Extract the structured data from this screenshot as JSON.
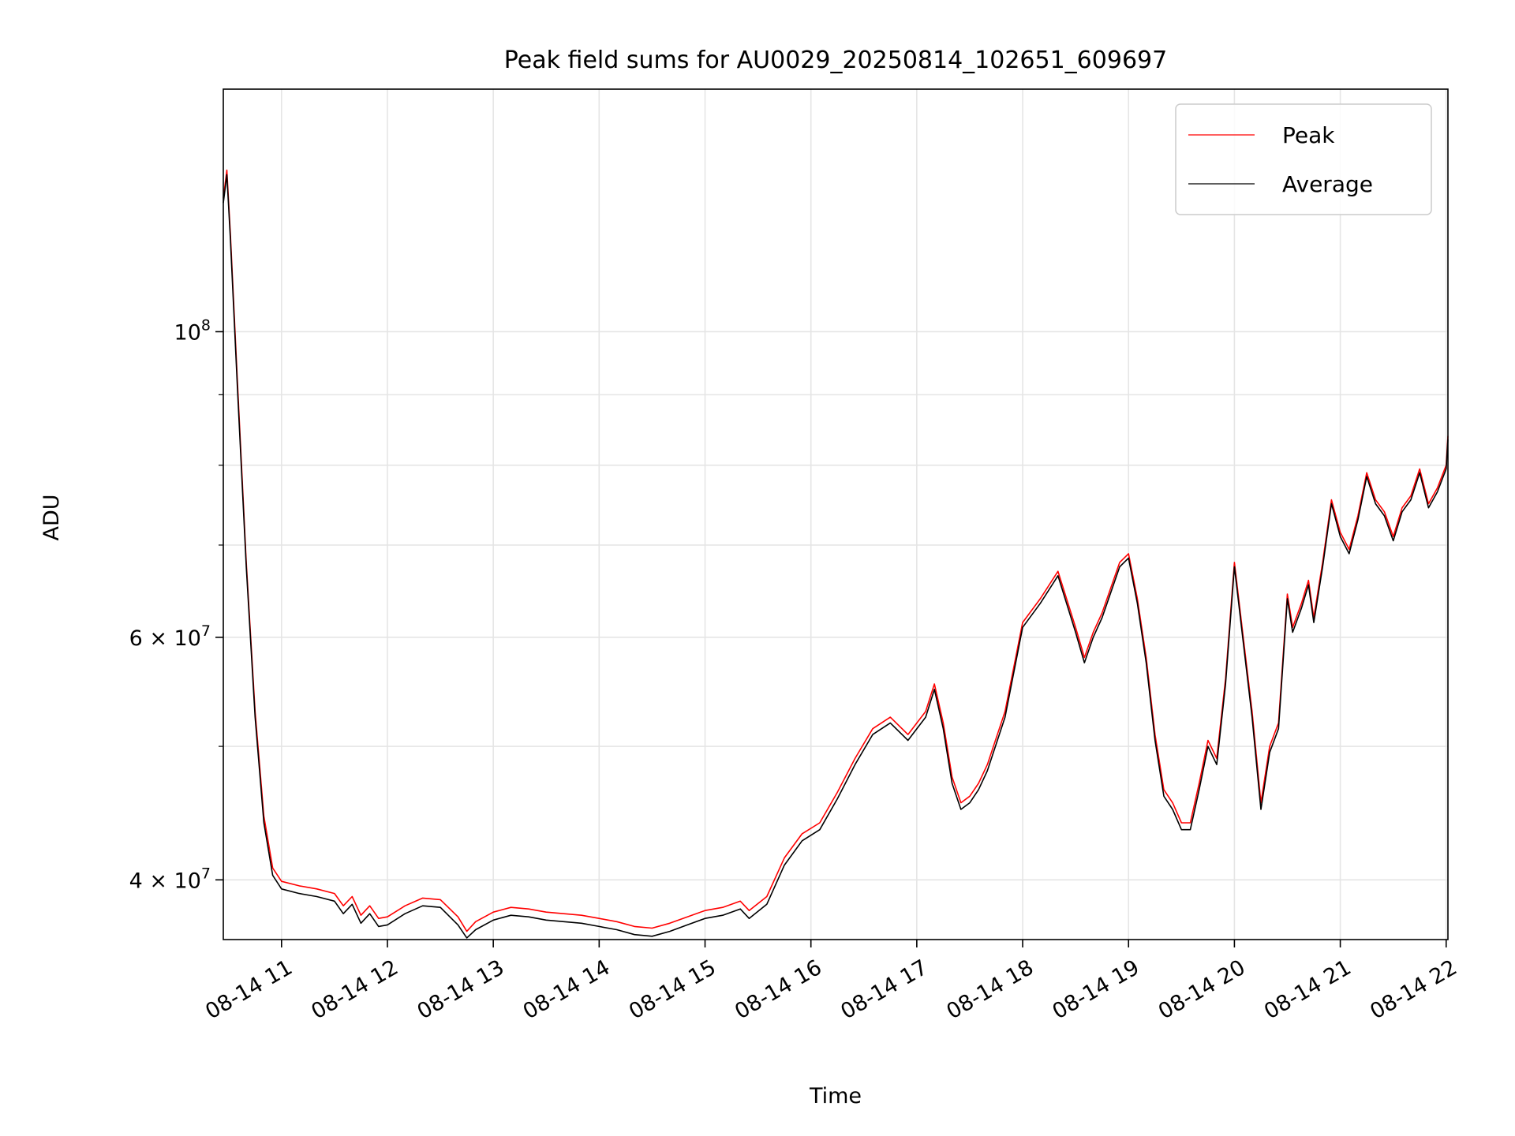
{
  "chart_data": {
    "type": "line",
    "title": "Peak field sums for AU0029_20250814_102651_609697",
    "xlabel": "Time",
    "ylabel": "ADU",
    "y_scale": "log",
    "grid": true,
    "legend_position": "top-right",
    "xlim": [
      "2025-08-14 10:27",
      "2025-08-14 22:01"
    ],
    "ylim": [
      36200000,
      150000000
    ],
    "x_ticks": [
      {
        "x": "2025-08-14 11:00",
        "label": "08-14 11"
      },
      {
        "x": "2025-08-14 12:00",
        "label": "08-14 12"
      },
      {
        "x": "2025-08-14 13:00",
        "label": "08-14 13"
      },
      {
        "x": "2025-08-14 14:00",
        "label": "08-14 14"
      },
      {
        "x": "2025-08-14 15:00",
        "label": "08-14 15"
      },
      {
        "x": "2025-08-14 16:00",
        "label": "08-14 16"
      },
      {
        "x": "2025-08-14 17:00",
        "label": "08-14 17"
      },
      {
        "x": "2025-08-14 18:00",
        "label": "08-14 18"
      },
      {
        "x": "2025-08-14 19:00",
        "label": "08-14 19"
      },
      {
        "x": "2025-08-14 20:00",
        "label": "08-14 20"
      },
      {
        "x": "2025-08-14 21:00",
        "label": "08-14 21"
      },
      {
        "x": "2025-08-14 22:00",
        "label": "08-14 22"
      }
    ],
    "y_major_ticks": [
      {
        "y": 40000000,
        "label_base": "4 × 10",
        "label_exp": "7"
      },
      {
        "y": 60000000,
        "label_base": "6 × 10",
        "label_exp": "7"
      },
      {
        "y": 100000000,
        "label_base": "10",
        "label_exp": "8"
      }
    ],
    "y_minor_ticks": [
      50000000,
      70000000,
      80000000,
      90000000
    ],
    "series": [
      {
        "name": "Peak",
        "color": "#ff0000",
        "points": [
          [
            "2025-08-14 10:27",
            125000000
          ],
          [
            "2025-08-14 10:29",
            131000000
          ],
          [
            "2025-08-14 10:31",
            118000000
          ],
          [
            "2025-08-14 10:35",
            92000000
          ],
          [
            "2025-08-14 10:40",
            68000000
          ],
          [
            "2025-08-14 10:45",
            53000000
          ],
          [
            "2025-08-14 10:50",
            44500000
          ],
          [
            "2025-08-14 10:55",
            40800000
          ],
          [
            "2025-08-14 11:00",
            39900000
          ],
          [
            "2025-08-14 11:10",
            39600000
          ],
          [
            "2025-08-14 11:20",
            39400000
          ],
          [
            "2025-08-14 11:30",
            39100000
          ],
          [
            "2025-08-14 11:35",
            38300000
          ],
          [
            "2025-08-14 11:40",
            38900000
          ],
          [
            "2025-08-14 11:45",
            37700000
          ],
          [
            "2025-08-14 11:50",
            38300000
          ],
          [
            "2025-08-14 11:55",
            37500000
          ],
          [
            "2025-08-14 12:00",
            37600000
          ],
          [
            "2025-08-14 12:10",
            38300000
          ],
          [
            "2025-08-14 12:20",
            38800000
          ],
          [
            "2025-08-14 12:30",
            38700000
          ],
          [
            "2025-08-14 12:40",
            37600000
          ],
          [
            "2025-08-14 12:45",
            36700000
          ],
          [
            "2025-08-14 12:50",
            37300000
          ],
          [
            "2025-08-14 13:00",
            37900000
          ],
          [
            "2025-08-14 13:10",
            38200000
          ],
          [
            "2025-08-14 13:20",
            38100000
          ],
          [
            "2025-08-14 13:30",
            37900000
          ],
          [
            "2025-08-14 13:40",
            37800000
          ],
          [
            "2025-08-14 13:50",
            37700000
          ],
          [
            "2025-08-14 14:00",
            37500000
          ],
          [
            "2025-08-14 14:10",
            37300000
          ],
          [
            "2025-08-14 14:20",
            37000000
          ],
          [
            "2025-08-14 14:30",
            36900000
          ],
          [
            "2025-08-14 14:40",
            37200000
          ],
          [
            "2025-08-14 14:50",
            37600000
          ],
          [
            "2025-08-14 15:00",
            38000000
          ],
          [
            "2025-08-14 15:10",
            38200000
          ],
          [
            "2025-08-14 15:20",
            38600000
          ],
          [
            "2025-08-14 15:25",
            38000000
          ],
          [
            "2025-08-14 15:35",
            38900000
          ],
          [
            "2025-08-14 15:45",
            41500000
          ],
          [
            "2025-08-14 15:55",
            43200000
          ],
          [
            "2025-08-14 16:05",
            44000000
          ],
          [
            "2025-08-14 16:15",
            46300000
          ],
          [
            "2025-08-14 16:25",
            49000000
          ],
          [
            "2025-08-14 16:35",
            51500000
          ],
          [
            "2025-08-14 16:45",
            52500000
          ],
          [
            "2025-08-14 16:55",
            51000000
          ],
          [
            "2025-08-14 17:05",
            53000000
          ],
          [
            "2025-08-14 17:10",
            55500000
          ],
          [
            "2025-08-14 17:15",
            52000000
          ],
          [
            "2025-08-14 17:20",
            47500000
          ],
          [
            "2025-08-14 17:25",
            45500000
          ],
          [
            "2025-08-14 17:30",
            46000000
          ],
          [
            "2025-08-14 17:35",
            47000000
          ],
          [
            "2025-08-14 17:40",
            48500000
          ],
          [
            "2025-08-14 17:50",
            53000000
          ],
          [
            "2025-08-14 18:00",
            61500000
          ],
          [
            "2025-08-14 18:10",
            64000000
          ],
          [
            "2025-08-14 18:20",
            67000000
          ],
          [
            "2025-08-14 18:30",
            61000000
          ],
          [
            "2025-08-14 18:35",
            58000000
          ],
          [
            "2025-08-14 18:40",
            60500000
          ],
          [
            "2025-08-14 18:45",
            62500000
          ],
          [
            "2025-08-14 18:55",
            68000000
          ],
          [
            "2025-08-14 19:00",
            69000000
          ],
          [
            "2025-08-14 19:05",
            64000000
          ],
          [
            "2025-08-14 19:10",
            58000000
          ],
          [
            "2025-08-14 19:15",
            51000000
          ],
          [
            "2025-08-14 19:20",
            46500000
          ],
          [
            "2025-08-14 19:25",
            45500000
          ],
          [
            "2025-08-14 19:30",
            44000000
          ],
          [
            "2025-08-14 19:35",
            44000000
          ],
          [
            "2025-08-14 19:40",
            47000000
          ],
          [
            "2025-08-14 19:45",
            50500000
          ],
          [
            "2025-08-14 19:50",
            49000000
          ],
          [
            "2025-08-14 19:55",
            56000000
          ],
          [
            "2025-08-14 20:00",
            68000000
          ],
          [
            "2025-08-14 20:05",
            60000000
          ],
          [
            "2025-08-14 20:10",
            53000000
          ],
          [
            "2025-08-14 20:15",
            45500000
          ],
          [
            "2025-08-14 20:20",
            50000000
          ],
          [
            "2025-08-14 20:25",
            52000000
          ],
          [
            "2025-08-14 20:30",
            64500000
          ],
          [
            "2025-08-14 20:33",
            61000000
          ],
          [
            "2025-08-14 20:38",
            63500000
          ],
          [
            "2025-08-14 20:42",
            66000000
          ],
          [
            "2025-08-14 20:45",
            62000000
          ],
          [
            "2025-08-14 20:50",
            68000000
          ],
          [
            "2025-08-14 20:55",
            75500000
          ],
          [
            "2025-08-14 21:00",
            71500000
          ],
          [
            "2025-08-14 21:05",
            69500000
          ],
          [
            "2025-08-14 21:10",
            73500000
          ],
          [
            "2025-08-14 21:15",
            79000000
          ],
          [
            "2025-08-14 21:20",
            75500000
          ],
          [
            "2025-08-14 21:25",
            74000000
          ],
          [
            "2025-08-14 21:30",
            71000000
          ],
          [
            "2025-08-14 21:35",
            74500000
          ],
          [
            "2025-08-14 21:40",
            76000000
          ],
          [
            "2025-08-14 21:45",
            79500000
          ],
          [
            "2025-08-14 21:50",
            75000000
          ],
          [
            "2025-08-14 21:55",
            77000000
          ],
          [
            "2025-08-14 22:00",
            80000000
          ],
          [
            "2025-08-14 22:01",
            84000000
          ]
        ]
      },
      {
        "name": "Average",
        "color": "#000000",
        "points": [
          [
            "2025-08-14 10:27",
            124000000
          ],
          [
            "2025-08-14 10:29",
            130000000
          ],
          [
            "2025-08-14 10:31",
            117000000
          ],
          [
            "2025-08-14 10:35",
            91000000
          ],
          [
            "2025-08-14 10:40",
            67500000
          ],
          [
            "2025-08-14 10:45",
            52500000
          ],
          [
            "2025-08-14 10:50",
            44000000
          ],
          [
            "2025-08-14 10:55",
            40300000
          ],
          [
            "2025-08-14 11:00",
            39400000
          ],
          [
            "2025-08-14 11:10",
            39100000
          ],
          [
            "2025-08-14 11:20",
            38900000
          ],
          [
            "2025-08-14 11:30",
            38600000
          ],
          [
            "2025-08-14 11:35",
            37800000
          ],
          [
            "2025-08-14 11:40",
            38400000
          ],
          [
            "2025-08-14 11:45",
            37200000
          ],
          [
            "2025-08-14 11:50",
            37800000
          ],
          [
            "2025-08-14 11:55",
            37000000
          ],
          [
            "2025-08-14 12:00",
            37100000
          ],
          [
            "2025-08-14 12:10",
            37800000
          ],
          [
            "2025-08-14 12:20",
            38300000
          ],
          [
            "2025-08-14 12:30",
            38200000
          ],
          [
            "2025-08-14 12:40",
            37100000
          ],
          [
            "2025-08-14 12:45",
            36300000
          ],
          [
            "2025-08-14 12:50",
            36800000
          ],
          [
            "2025-08-14 13:00",
            37400000
          ],
          [
            "2025-08-14 13:10",
            37700000
          ],
          [
            "2025-08-14 13:20",
            37600000
          ],
          [
            "2025-08-14 13:30",
            37400000
          ],
          [
            "2025-08-14 13:40",
            37300000
          ],
          [
            "2025-08-14 13:50",
            37200000
          ],
          [
            "2025-08-14 14:00",
            37000000
          ],
          [
            "2025-08-14 14:10",
            36800000
          ],
          [
            "2025-08-14 14:20",
            36500000
          ],
          [
            "2025-08-14 14:30",
            36400000
          ],
          [
            "2025-08-14 14:40",
            36700000
          ],
          [
            "2025-08-14 14:50",
            37100000
          ],
          [
            "2025-08-14 15:00",
            37500000
          ],
          [
            "2025-08-14 15:10",
            37700000
          ],
          [
            "2025-08-14 15:20",
            38100000
          ],
          [
            "2025-08-14 15:25",
            37500000
          ],
          [
            "2025-08-14 15:35",
            38400000
          ],
          [
            "2025-08-14 15:45",
            41000000
          ],
          [
            "2025-08-14 15:55",
            42700000
          ],
          [
            "2025-08-14 16:05",
            43500000
          ],
          [
            "2025-08-14 16:15",
            45800000
          ],
          [
            "2025-08-14 16:25",
            48500000
          ],
          [
            "2025-08-14 16:35",
            51000000
          ],
          [
            "2025-08-14 16:45",
            52000000
          ],
          [
            "2025-08-14 16:55",
            50500000
          ],
          [
            "2025-08-14 17:05",
            52500000
          ],
          [
            "2025-08-14 17:10",
            55000000
          ],
          [
            "2025-08-14 17:15",
            51500000
          ],
          [
            "2025-08-14 17:20",
            47000000
          ],
          [
            "2025-08-14 17:25",
            45000000
          ],
          [
            "2025-08-14 17:30",
            45500000
          ],
          [
            "2025-08-14 17:35",
            46500000
          ],
          [
            "2025-08-14 17:40",
            48000000
          ],
          [
            "2025-08-14 17:50",
            52500000
          ],
          [
            "2025-08-14 18:00",
            61000000
          ],
          [
            "2025-08-14 18:10",
            63500000
          ],
          [
            "2025-08-14 18:20",
            66500000
          ],
          [
            "2025-08-14 18:30",
            60500000
          ],
          [
            "2025-08-14 18:35",
            57500000
          ],
          [
            "2025-08-14 18:40",
            60000000
          ],
          [
            "2025-08-14 18:45",
            62000000
          ],
          [
            "2025-08-14 18:55",
            67500000
          ],
          [
            "2025-08-14 19:00",
            68500000
          ],
          [
            "2025-08-14 19:05",
            63500000
          ],
          [
            "2025-08-14 19:10",
            57500000
          ],
          [
            "2025-08-14 19:15",
            50500000
          ],
          [
            "2025-08-14 19:20",
            46000000
          ],
          [
            "2025-08-14 19:25",
            45000000
          ],
          [
            "2025-08-14 19:30",
            43500000
          ],
          [
            "2025-08-14 19:35",
            43500000
          ],
          [
            "2025-08-14 19:40",
            46500000
          ],
          [
            "2025-08-14 19:45",
            50000000
          ],
          [
            "2025-08-14 19:50",
            48500000
          ],
          [
            "2025-08-14 19:55",
            55500000
          ],
          [
            "2025-08-14 20:00",
            67500000
          ],
          [
            "2025-08-14 20:05",
            59500000
          ],
          [
            "2025-08-14 20:10",
            52500000
          ],
          [
            "2025-08-14 20:15",
            45000000
          ],
          [
            "2025-08-14 20:20",
            49500000
          ],
          [
            "2025-08-14 20:25",
            51500000
          ],
          [
            "2025-08-14 20:30",
            64000000
          ],
          [
            "2025-08-14 20:33",
            60500000
          ],
          [
            "2025-08-14 20:38",
            63000000
          ],
          [
            "2025-08-14 20:42",
            65500000
          ],
          [
            "2025-08-14 20:45",
            61500000
          ],
          [
            "2025-08-14 20:50",
            67500000
          ],
          [
            "2025-08-14 20:55",
            75000000
          ],
          [
            "2025-08-14 21:00",
            71000000
          ],
          [
            "2025-08-14 21:05",
            69000000
          ],
          [
            "2025-08-14 21:10",
            73000000
          ],
          [
            "2025-08-14 21:15",
            78500000
          ],
          [
            "2025-08-14 21:20",
            75000000
          ],
          [
            "2025-08-14 21:25",
            73500000
          ],
          [
            "2025-08-14 21:30",
            70500000
          ],
          [
            "2025-08-14 21:35",
            74000000
          ],
          [
            "2025-08-14 21:40",
            75500000
          ],
          [
            "2025-08-14 21:45",
            79000000
          ],
          [
            "2025-08-14 21:50",
            74500000
          ],
          [
            "2025-08-14 21:55",
            76500000
          ],
          [
            "2025-08-14 22:00",
            79500000
          ],
          [
            "2025-08-14 22:01",
            83500000
          ]
        ]
      }
    ]
  }
}
